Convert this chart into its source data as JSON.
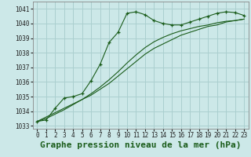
{
  "title": "Graphe pression niveau de la mer (hPa)",
  "bg_color": "#cce8e8",
  "grid_color": "#aacfcf",
  "line_color": "#1a5c1a",
  "xlim": [
    -0.5,
    23.5
  ],
  "ylim": [
    1032.8,
    1041.5
  ],
  "yticks": [
    1033,
    1034,
    1035,
    1036,
    1037,
    1038,
    1039,
    1040,
    1041
  ],
  "xticks": [
    0,
    1,
    2,
    3,
    4,
    5,
    6,
    7,
    8,
    9,
    10,
    11,
    12,
    13,
    14,
    15,
    16,
    17,
    18,
    19,
    20,
    21,
    22,
    23
  ],
  "series1_x": [
    0,
    1,
    2,
    3,
    4,
    5,
    6,
    7,
    8,
    9,
    10,
    11,
    12,
    13,
    14,
    15,
    16,
    17,
    18,
    19,
    20,
    21,
    22,
    23
  ],
  "series1_y": [
    1033.3,
    1033.4,
    1034.2,
    1034.9,
    1035.0,
    1035.2,
    1036.1,
    1037.2,
    1038.7,
    1039.4,
    1040.7,
    1040.8,
    1040.6,
    1040.2,
    1040.0,
    1039.9,
    1039.9,
    1040.1,
    1040.3,
    1040.5,
    1040.7,
    1040.8,
    1040.75,
    1040.55
  ],
  "series2_x": [
    0,
    1,
    2,
    3,
    4,
    5,
    6,
    7,
    8,
    9,
    10,
    11,
    12,
    13,
    14,
    15,
    16,
    17,
    18,
    19,
    20,
    21,
    22,
    23
  ],
  "series2_y": [
    1033.3,
    1033.6,
    1033.9,
    1034.2,
    1034.5,
    1034.8,
    1035.1,
    1035.5,
    1035.9,
    1036.4,
    1036.9,
    1037.4,
    1037.9,
    1038.3,
    1038.6,
    1038.9,
    1039.2,
    1039.4,
    1039.6,
    1039.8,
    1039.9,
    1040.1,
    1040.2,
    1040.3
  ],
  "series3_x": [
    0,
    1,
    2,
    3,
    4,
    5,
    6,
    7,
    8,
    9,
    10,
    11,
    12,
    13,
    14,
    15,
    16,
    17,
    18,
    19,
    20,
    21,
    22,
    23
  ],
  "series3_y": [
    1033.3,
    1033.5,
    1033.8,
    1034.1,
    1034.45,
    1034.8,
    1035.2,
    1035.65,
    1036.15,
    1036.7,
    1037.3,
    1037.85,
    1038.35,
    1038.75,
    1039.05,
    1039.3,
    1039.5,
    1039.65,
    1039.8,
    1039.9,
    1040.05,
    1040.15,
    1040.2,
    1040.3
  ],
  "title_fontsize": 8,
  "tick_fontsize": 5.5
}
